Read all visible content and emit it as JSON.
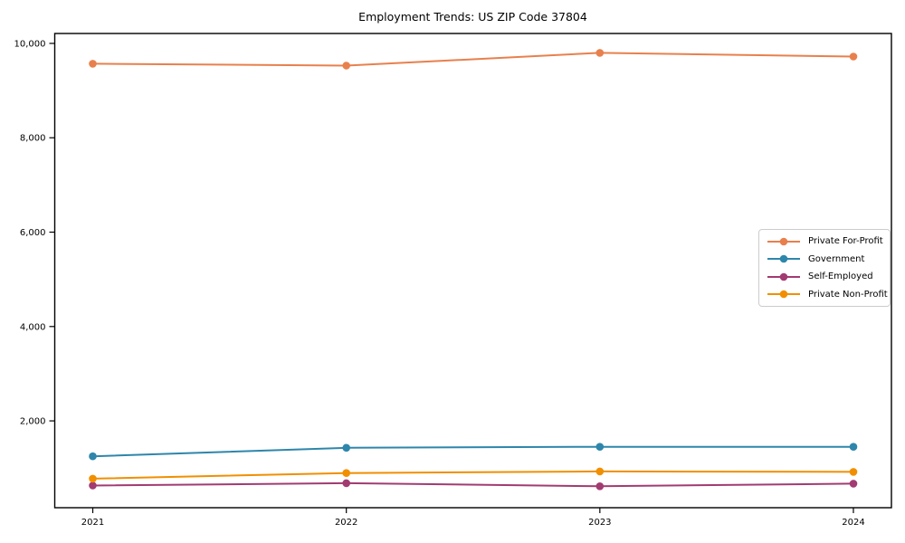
{
  "figure": {
    "title": "Employment Trends: US ZIP Code 37804"
  },
  "chart_data": {
    "type": "line",
    "title": "Employment Trends: US ZIP Code 37804",
    "x": [
      2021,
      2022,
      2023,
      2024
    ],
    "x_tick_labels": [
      "2021",
      "2022",
      "2023",
      "2024"
    ],
    "series": [
      {
        "name": "Private For-Profit",
        "color": "#E8804D",
        "values": [
          9570,
          9530,
          9800,
          9720
        ]
      },
      {
        "name": "Government",
        "color": "#2E86AB",
        "values": [
          1250,
          1430,
          1450,
          1450
        ]
      },
      {
        "name": "Self-Employed",
        "color": "#A23B72",
        "values": [
          630,
          680,
          615,
          670
        ]
      },
      {
        "name": "Private Non-Profit",
        "color": "#F18F01",
        "values": [
          775,
          895,
          930,
          920
        ]
      }
    ],
    "xlim": [
      2020.85,
      2024.15
    ],
    "ylim": [
      160,
      10210
    ],
    "yticks": [
      2000,
      4000,
      6000,
      8000,
      10000
    ],
    "grid": false,
    "legend_position": "center right",
    "marker": "circle",
    "axis_color": "#000000",
    "background_color": "#ffffff"
  }
}
